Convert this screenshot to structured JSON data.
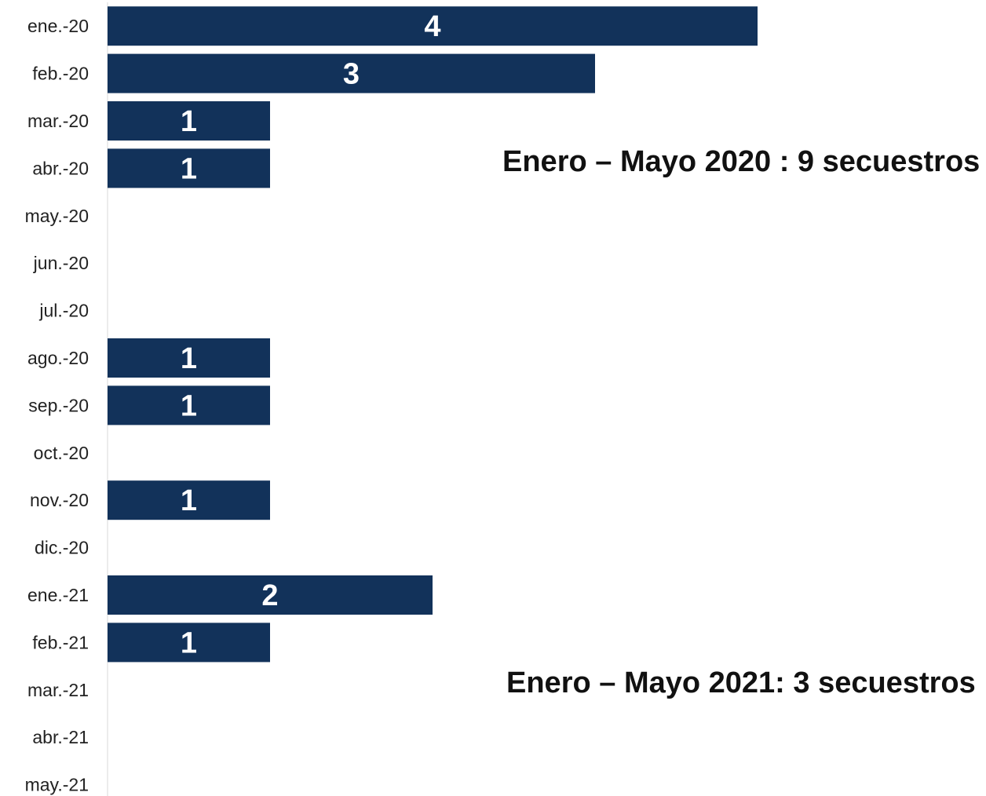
{
  "chart_data": {
    "type": "bar",
    "orientation": "horizontal",
    "categories": [
      "ene.-20",
      "feb.-20",
      "mar.-20",
      "abr.-20",
      "may.-20",
      "jun.-20",
      "jul.-20",
      "ago.-20",
      "sep.-20",
      "oct.-20",
      "nov.-20",
      "dic.-20",
      "ene.-21",
      "feb.-21",
      "mar.-21",
      "abr.-21",
      "may.-21"
    ],
    "values": [
      4,
      3,
      1,
      1,
      0,
      0,
      0,
      1,
      1,
      0,
      1,
      0,
      2,
      1,
      0,
      0,
      0
    ],
    "bar_color": "#12325a",
    "label_color": "#ffffff",
    "annotations": [
      "Enero – Mayo 2020 : 9 secuestros",
      "Enero – Mayo 2021: 3 secuestros"
    ]
  }
}
